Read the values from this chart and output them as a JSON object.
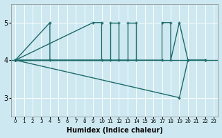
{
  "xlabel": "Humidex (Indice chaleur)",
  "bg_color": "#cde8f0",
  "grid_color": "#ffffff",
  "line_color": "#1a6b6b",
  "xlim": [
    -0.5,
    23.5
  ],
  "ylim": [
    2.5,
    5.5
  ],
  "yticks": [
    3,
    4,
    5
  ],
  "xticks": [
    0,
    1,
    2,
    3,
    4,
    5,
    6,
    7,
    8,
    9,
    10,
    11,
    12,
    13,
    14,
    15,
    16,
    17,
    18,
    19,
    20,
    21,
    22,
    23
  ],
  "series": [
    {
      "x": [
        0,
        4,
        4,
        3
      ],
      "y": [
        4,
        5,
        4,
        4
      ]
    },
    {
      "x": [
        0,
        9,
        10,
        10,
        11,
        12,
        13,
        13,
        9
      ],
      "y": [
        4,
        5,
        5,
        4,
        4,
        4,
        5,
        4,
        5
      ]
    },
    {
      "x": [
        0,
        10,
        11,
        11,
        12,
        3
      ],
      "y": [
        4,
        5,
        5,
        4,
        4,
        4
      ]
    },
    {
      "x": [
        0,
        13,
        14,
        14,
        15,
        13,
        17,
        17,
        18,
        18,
        19,
        20,
        19
      ],
      "y": [
        4,
        5,
        5,
        4,
        4,
        5,
        5,
        4,
        4,
        5,
        5,
        4,
        3
      ]
    },
    {
      "x": [
        0,
        19,
        20,
        22
      ],
      "y": [
        4,
        3,
        4,
        4
      ]
    }
  ],
  "hline_y": 4,
  "series_clean": [
    {
      "x": [
        0,
        4,
        4
      ],
      "y": [
        4,
        5,
        4
      ]
    },
    {
      "x": [
        0,
        9,
        10,
        10
      ],
      "y": [
        4,
        5,
        5,
        4
      ]
    },
    {
      "x": [
        0,
        11,
        12,
        12
      ],
      "y": [
        4,
        5,
        5,
        4
      ]
    },
    {
      "x": [
        0,
        13,
        13,
        14,
        14,
        15,
        17,
        17,
        18,
        18,
        19
      ],
      "y": [
        4,
        5,
        4,
        5,
        4,
        4,
        5,
        4,
        5,
        4,
        5
      ]
    },
    {
      "x": [
        0,
        19,
        20,
        22
      ],
      "y": [
        4,
        3,
        4,
        4
      ]
    }
  ]
}
